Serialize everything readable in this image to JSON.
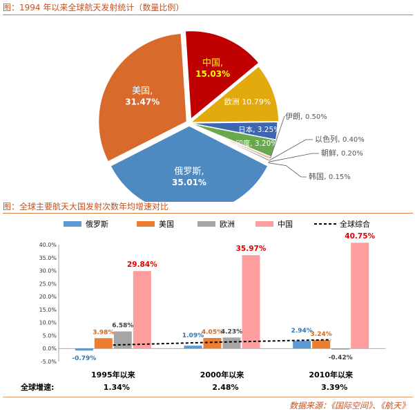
{
  "pie_section": {
    "title": "图：1994 年以来全球航天发射统计（数量比例）"
  },
  "bar_section": {
    "title": "图：全球主要航天大国发射次数年均增速对比"
  },
  "source": "数据来源：《国际空间》、《航天》",
  "colors": {
    "russia": "#4f89c2",
    "usa": "#d86a2c",
    "china": "#c00000",
    "europe": "#e2aa0c",
    "japan": "#3d65b0",
    "india": "#6aa84f",
    "iran": "#f2b8a6",
    "israel": "#a5a5a5",
    "nkorea": "#d9d9d9",
    "skorea": "#f7c6c6",
    "bar_russia": "#5b9bd5",
    "bar_usa": "#ed7d31",
    "bar_europe": "#a5a5a5",
    "bar_china": "#ff9e9e"
  },
  "chart_data": [
    {
      "type": "pie",
      "slices": [
        {
          "label": "俄罗斯,",
          "value": 35.01,
          "value_text": "35.01%"
        },
        {
          "label": "美国,",
          "value": 31.47,
          "value_text": "31.47%"
        },
        {
          "label": "中国,",
          "value": 15.03,
          "value_text": "15.03%"
        },
        {
          "label": "欧洲",
          "value": 10.79,
          "value_text": "10.79%"
        },
        {
          "label": "日本,",
          "value": 3.25,
          "value_text": "3.25%"
        },
        {
          "label": "印度,",
          "value": 3.2,
          "value_text": "3.20%"
        },
        {
          "label": "伊朗,",
          "value": 0.5,
          "value_text": "0.50%"
        },
        {
          "label": "以色列,",
          "value": 0.4,
          "value_text": "0.40%"
        },
        {
          "label": "朝鲜,",
          "value": 0.2,
          "value_text": "0.20%"
        },
        {
          "label": "韩国,",
          "value": 0.15,
          "value_text": "0.15%"
        }
      ]
    },
    {
      "type": "bar",
      "categories": [
        "1995年以来",
        "2000年以来",
        "2010年以来"
      ],
      "series": [
        {
          "name": "俄罗斯",
          "values": [
            -0.79,
            1.09,
            2.94
          ],
          "labels": [
            "-0.79%",
            "1.09%",
            "2.94%"
          ]
        },
        {
          "name": "美国",
          "values": [
            3.98,
            4.05,
            3.24
          ],
          "labels": [
            "3.98%",
            "4.05%",
            "3.24%"
          ]
        },
        {
          "name": "欧洲",
          "values": [
            6.58,
            4.23,
            -0.42
          ],
          "labels": [
            "6.58%",
            "4.23%",
            "-0.42%"
          ]
        },
        {
          "name": "中国",
          "values": [
            29.84,
            35.97,
            40.75
          ],
          "labels": [
            "29.84%",
            "35.97%",
            "40.75%"
          ]
        }
      ],
      "line": {
        "name": "全球综合",
        "values": [
          1.34,
          2.48,
          3.39
        ]
      },
      "global_row": {
        "label": "全球增速:",
        "values": [
          "1.34%",
          "2.48%",
          "3.39%"
        ]
      },
      "ylim": [
        -5,
        40
      ],
      "yticks": [
        "-5.0%",
        "0.0%",
        "5.0%",
        "10.0%",
        "15.0%",
        "20.0%",
        "25.0%",
        "30.0%",
        "35.0%",
        "40.0%"
      ]
    }
  ]
}
